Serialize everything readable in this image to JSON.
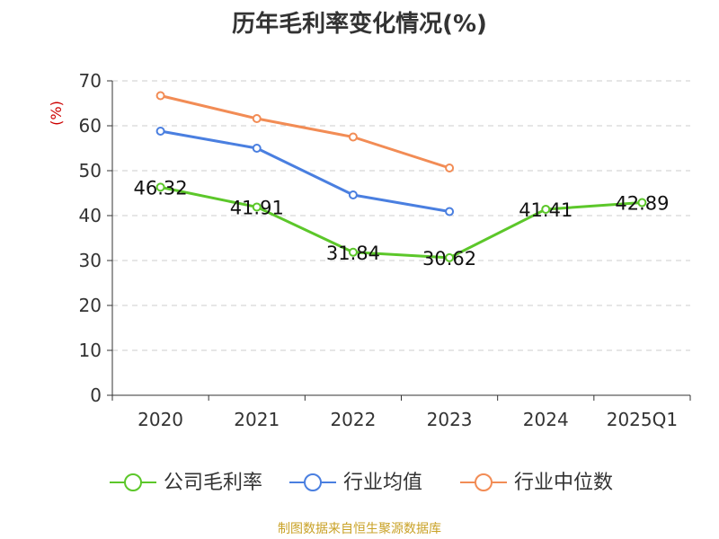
{
  "chart_data": {
    "type": "line",
    "title": "历年毛利率变化情况(%)",
    "ylabel": "(%)",
    "xlabel": "",
    "categories": [
      "2020",
      "2021",
      "2022",
      "2023",
      "2024",
      "2025Q1"
    ],
    "ylim": [
      0,
      70
    ],
    "yticks": [
      0,
      10,
      20,
      30,
      40,
      50,
      60,
      70
    ],
    "grid": true,
    "legend_position": "bottom",
    "series": [
      {
        "name": "公司毛利率",
        "color": "#5cc72a",
        "values": [
          46.32,
          41.91,
          31.84,
          30.62,
          41.41,
          42.89
        ],
        "labels": [
          "46.32",
          "41.91",
          "31.84",
          "30.62",
          "41.41",
          "42.89"
        ]
      },
      {
        "name": "行业均值",
        "color": "#4a7fe0",
        "values": [
          58.8,
          55.0,
          44.6,
          40.9,
          null,
          null
        ]
      },
      {
        "name": "行业中位数",
        "color": "#f28c55",
        "values": [
          66.7,
          61.6,
          57.5,
          50.6,
          null,
          null
        ]
      }
    ]
  },
  "source_text": "制图数据来自恒生聚源数据库"
}
